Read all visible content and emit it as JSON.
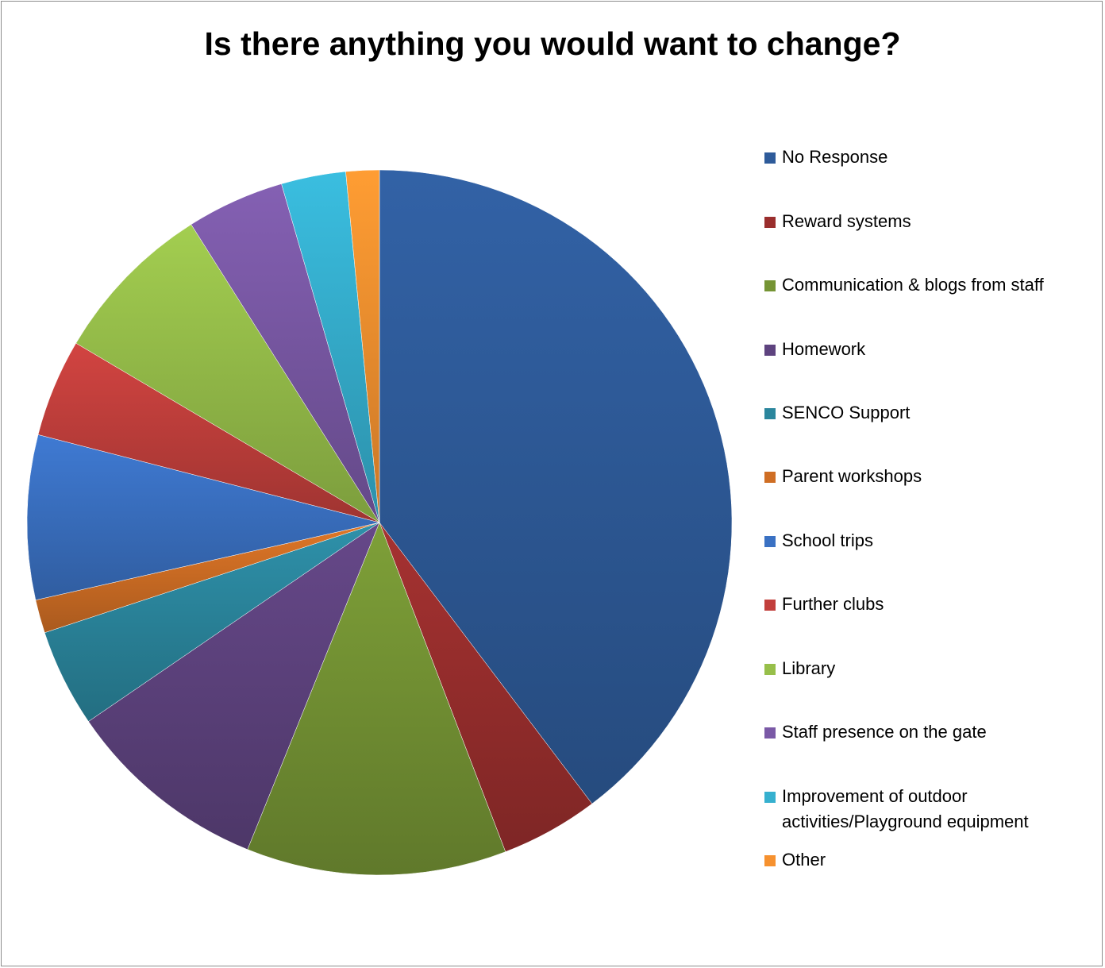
{
  "chart_data": {
    "type": "pie",
    "title": "Is there anything you would want to change?",
    "legend_position": "right",
    "categories": [
      "No Response",
      "Reward systems",
      "Communication & blogs from staff",
      "Homework",
      "SENCO Support",
      "Parent workshops",
      "School trips",
      "Further clubs",
      "Library",
      "Staff presence on the gate",
      "Improvement of outdoor activities/Playground equipment",
      "Other"
    ],
    "values": [
      41.6,
      4.7,
      12.5,
      9.8,
      4.7,
      1.6,
      7.9,
      4.7,
      7.9,
      4.7,
      3.1,
      1.6
    ],
    "colors": [
      "#2e5b9a",
      "#9a2e2d",
      "#759434",
      "#5e437f",
      "#2b869d",
      "#cf6e24",
      "#3a71c3",
      "#c23f3c",
      "#97bf4a",
      "#7a59a6",
      "#36b0cf",
      "#f6912f"
    ]
  }
}
